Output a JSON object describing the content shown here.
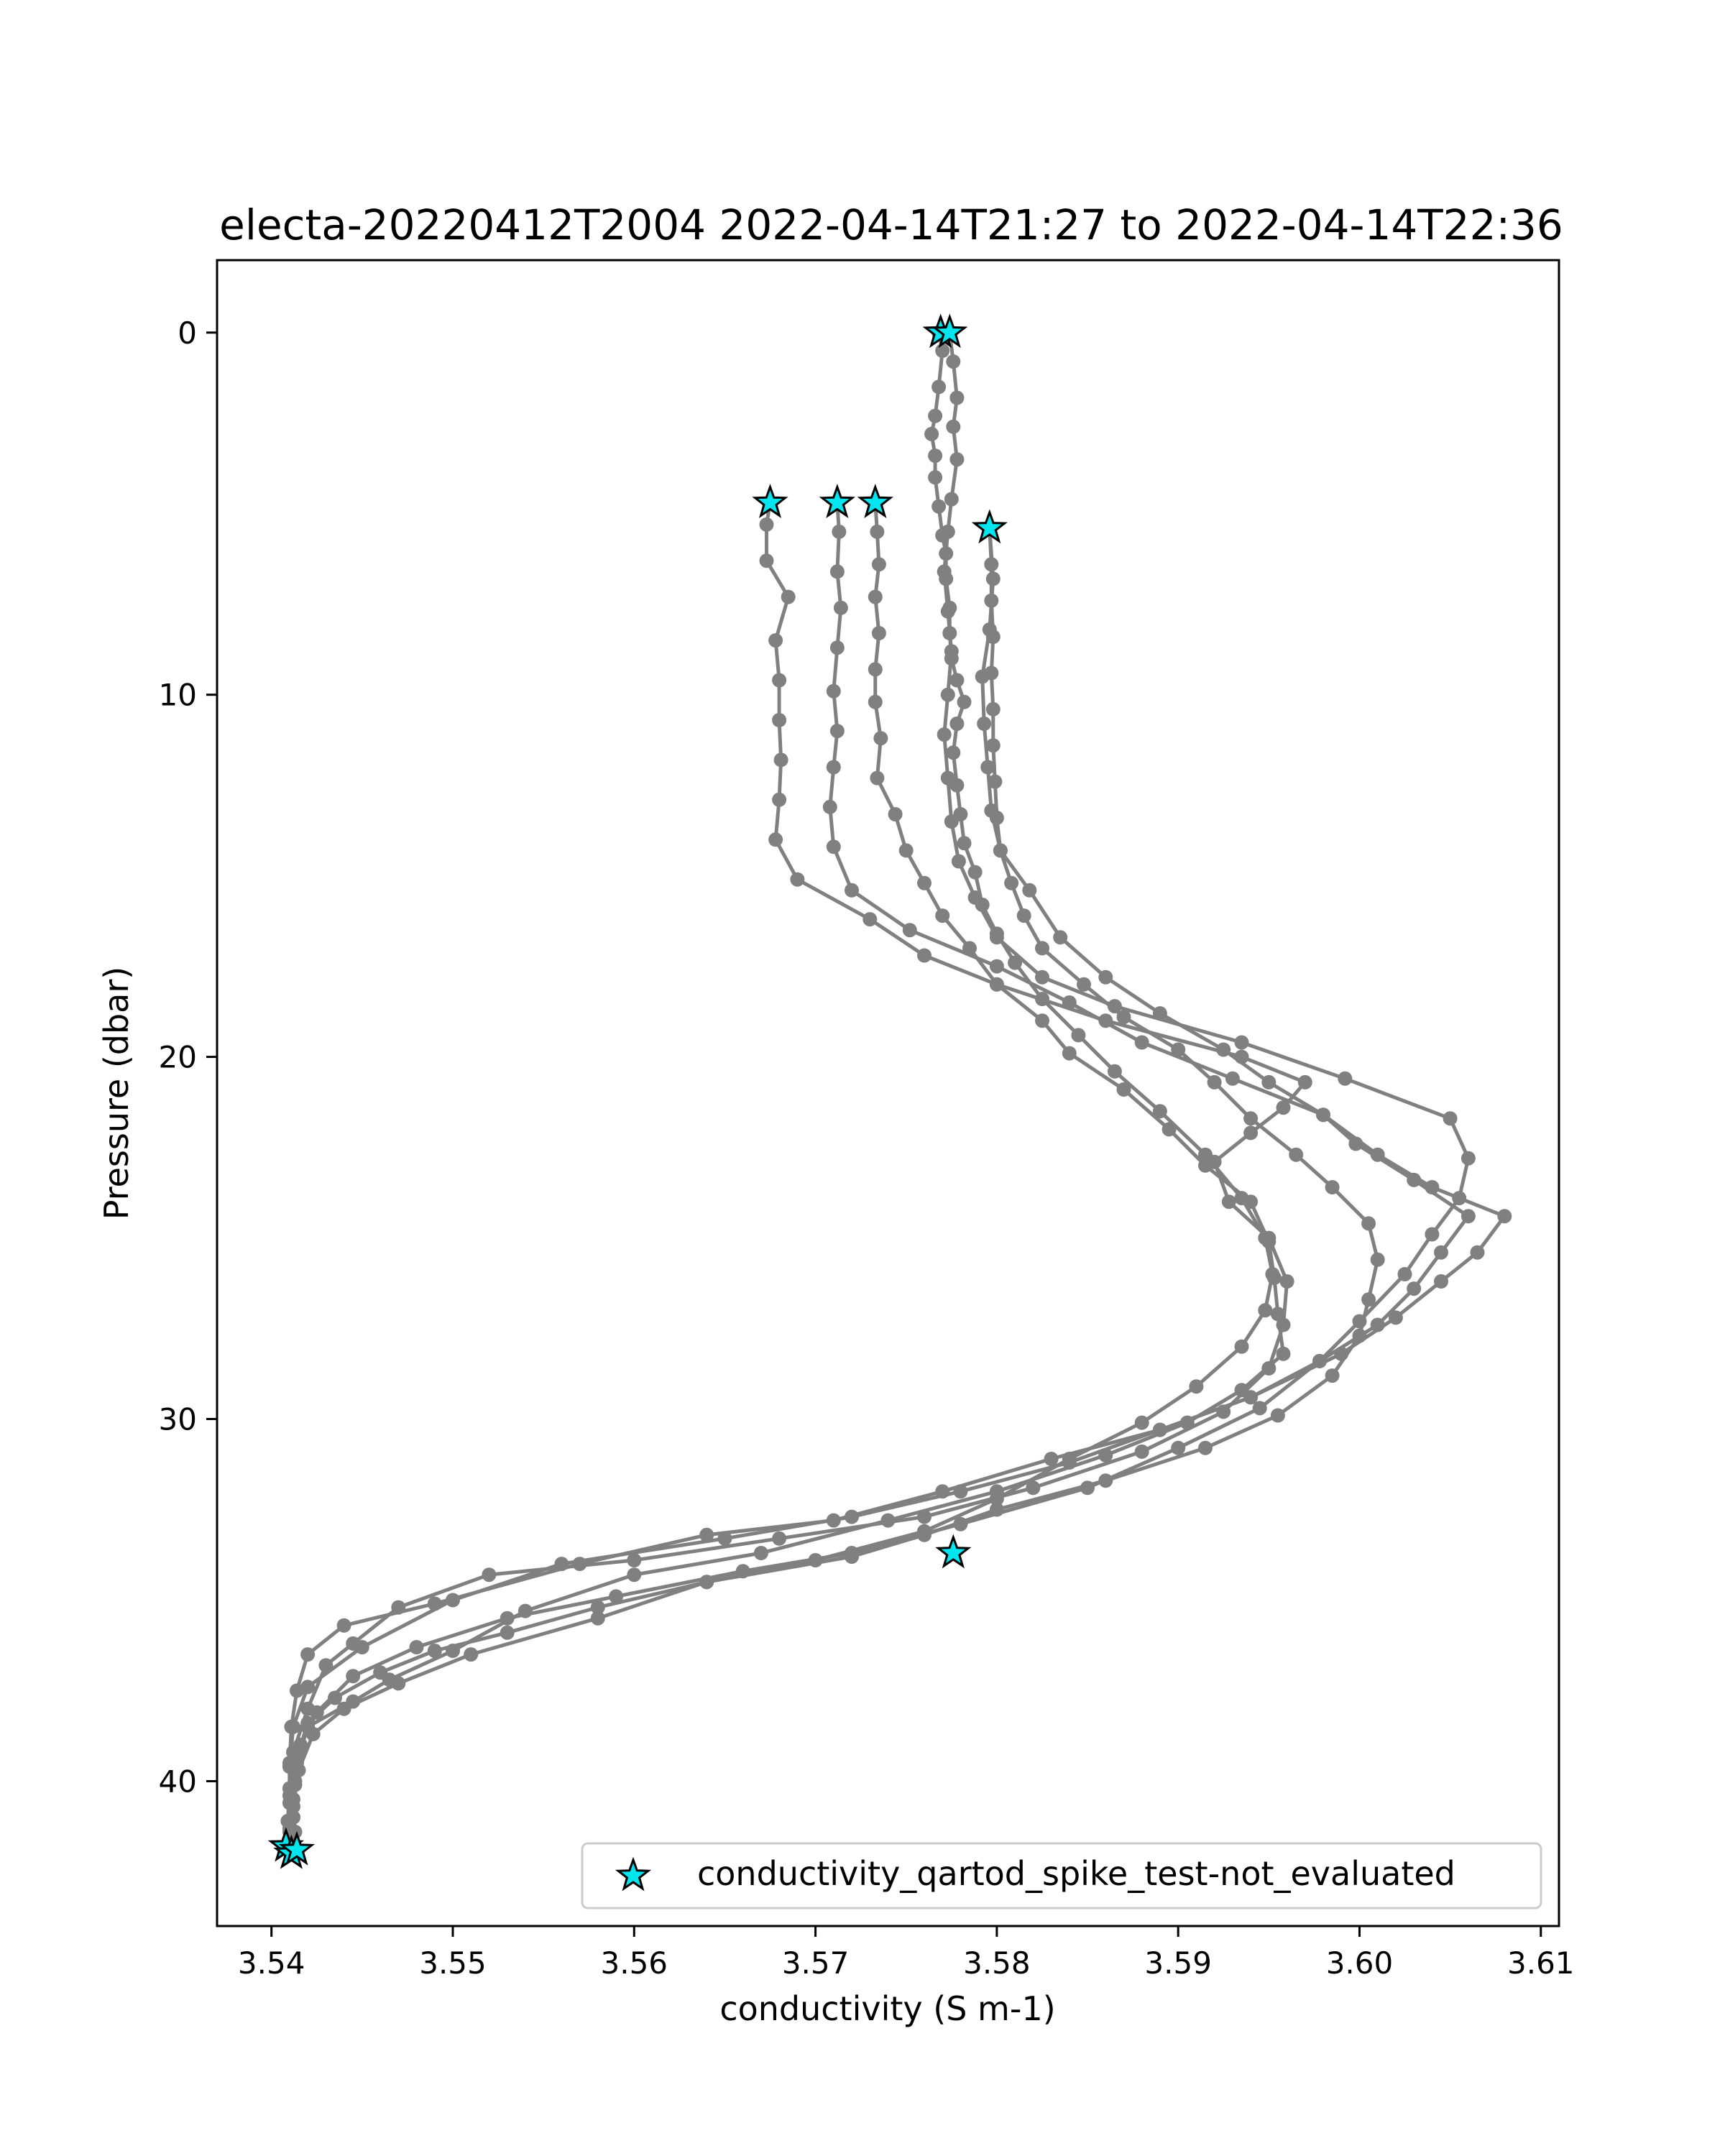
{
  "chart_data": {
    "type": "line",
    "title": "electa-20220412T2004 2022-04-14T21:27 to 2022-04-14T22:36",
    "xlabel": "conductivity (S m-1)",
    "ylabel": "Pressure (dbar)",
    "xlim": [
      3.537,
      3.611
    ],
    "ylim": [
      44,
      -2
    ],
    "y_inverted": true,
    "grid": false,
    "xticks": [
      3.54,
      3.55,
      3.56,
      3.57,
      3.58,
      3.59,
      3.6,
      3.61
    ],
    "xtick_labels": [
      "3.54",
      "3.55",
      "3.56",
      "3.57",
      "3.58",
      "3.59",
      "3.60",
      "3.61"
    ],
    "yticks": [
      0,
      10,
      20,
      30,
      40
    ],
    "ytick_labels": [
      "0",
      "10",
      "20",
      "30",
      "40"
    ],
    "line_color": "#808080",
    "legend": {
      "position": "lower right",
      "entries": [
        {
          "label": "conductivity_qartod_spike_test-not_evaluated",
          "marker": "star",
          "color": "#00e5ee"
        }
      ]
    },
    "series": [
      {
        "points": [
          [
            3.5768,
            0.0
          ],
          [
            3.577,
            0.5
          ],
          [
            3.5768,
            1.5
          ],
          [
            3.5766,
            2.3
          ],
          [
            3.5764,
            2.8
          ],
          [
            3.5766,
            3.4
          ],
          [
            3.5766,
            4.0
          ],
          [
            3.5768,
            4.8
          ],
          [
            3.577,
            5.6
          ],
          [
            3.5772,
            6.1
          ],
          [
            3.5772,
            6.8
          ],
          [
            3.5774,
            7.6
          ],
          [
            3.5774,
            8.3
          ],
          [
            3.5775,
            9.0
          ],
          [
            3.5778,
            9.6
          ],
          [
            3.5782,
            10.2
          ],
          [
            3.5778,
            10.8
          ],
          [
            3.5776,
            11.6
          ],
          [
            3.5778,
            12.5
          ],
          [
            3.578,
            13.3
          ],
          [
            3.5782,
            14.1
          ],
          [
            3.5788,
            14.9
          ],
          [
            3.5792,
            15.8
          ],
          [
            3.58,
            16.6
          ],
          [
            3.581,
            17.4
          ],
          [
            3.5825,
            18.4
          ],
          [
            3.5845,
            19.4
          ],
          [
            3.5865,
            20.4
          ],
          [
            3.589,
            21.5
          ],
          [
            3.5915,
            22.7
          ],
          [
            3.5935,
            23.9
          ],
          [
            3.5948,
            25.0
          ],
          [
            3.5952,
            26.0
          ],
          [
            3.5948,
            27.0
          ],
          [
            3.5935,
            28.0
          ],
          [
            3.591,
            29.1
          ],
          [
            3.588,
            30.1
          ],
          [
            3.584,
            31.1
          ],
          [
            3.58,
            32.2
          ],
          [
            3.576,
            33.1
          ],
          [
            3.57,
            33.9
          ],
          [
            3.564,
            34.5
          ],
          [
            3.558,
            35.2
          ],
          [
            3.553,
            35.9
          ],
          [
            3.549,
            36.4
          ],
          [
            3.546,
            37.0
          ],
          [
            3.5435,
            37.7
          ],
          [
            3.542,
            38.4
          ],
          [
            3.5415,
            39.2
          ],
          [
            3.5413,
            40.1
          ],
          [
            3.5412,
            41.0
          ],
          [
            3.5412,
            41.8
          ]
        ]
      },
      {
        "points": [
          [
            3.5774,
            0.0
          ],
          [
            3.5776,
            0.8
          ],
          [
            3.5778,
            1.8
          ],
          [
            3.5776,
            2.6
          ],
          [
            3.5778,
            3.5
          ],
          [
            3.5775,
            4.6
          ],
          [
            3.5773,
            5.5
          ],
          [
            3.5771,
            6.6
          ],
          [
            3.5773,
            7.7
          ],
          [
            3.5775,
            8.8
          ],
          [
            3.5773,
            10.0
          ],
          [
            3.5771,
            11.1
          ],
          [
            3.5773,
            12.3
          ],
          [
            3.5775,
            13.5
          ],
          [
            3.5779,
            14.6
          ],
          [
            3.5788,
            15.6
          ],
          [
            3.58,
            16.7
          ],
          [
            3.5825,
            17.8
          ],
          [
            3.5865,
            18.6
          ],
          [
            3.5935,
            19.6
          ],
          [
            3.5992,
            20.6
          ],
          [
            3.605,
            21.7
          ],
          [
            3.606,
            22.8
          ],
          [
            3.6055,
            23.9
          ],
          [
            3.604,
            24.9
          ],
          [
            3.6025,
            26.0
          ],
          [
            3.6,
            27.3
          ],
          [
            3.5978,
            28.4
          ],
          [
            3.5945,
            29.7
          ],
          [
            3.59,
            30.8
          ],
          [
            3.585,
            31.9
          ],
          [
            3.578,
            32.9
          ],
          [
            3.572,
            33.7
          ],
          [
            3.566,
            34.2
          ],
          [
            3.559,
            34.9
          ],
          [
            3.553,
            35.5
          ],
          [
            3.548,
            36.3
          ],
          [
            3.5445,
            37.1
          ],
          [
            3.5425,
            38.1
          ],
          [
            3.5416,
            39.0
          ],
          [
            3.5413,
            40.0
          ],
          [
            3.5412,
            41.0
          ],
          [
            3.541,
            41.8
          ]
        ]
      },
      {
        "points": [
          [
            3.5675,
            4.7
          ],
          [
            3.5673,
            5.3
          ],
          [
            3.5673,
            6.3
          ],
          [
            3.5685,
            7.3
          ],
          [
            3.5678,
            8.5
          ],
          [
            3.568,
            9.6
          ],
          [
            3.568,
            10.7
          ],
          [
            3.5681,
            11.8
          ],
          [
            3.568,
            12.9
          ],
          [
            3.5678,
            14.0
          ],
          [
            3.569,
            15.1
          ],
          [
            3.573,
            16.2
          ],
          [
            3.576,
            17.2
          ],
          [
            3.58,
            18.0
          ],
          [
            3.586,
            19.0
          ],
          [
            3.5935,
            20.0
          ],
          [
            3.597,
            20.7
          ],
          [
            3.5958,
            21.4
          ],
          [
            3.594,
            22.1
          ],
          [
            3.592,
            22.9
          ],
          [
            3.5928,
            24.0
          ],
          [
            3.595,
            25.0
          ],
          [
            3.596,
            26.2
          ],
          [
            3.5958,
            27.4
          ],
          [
            3.595,
            28.6
          ],
          [
            3.5925,
            29.8
          ],
          [
            3.588,
            30.9
          ],
          [
            3.582,
            31.9
          ],
          [
            3.576,
            32.7
          ],
          [
            3.568,
            33.3
          ],
          [
            3.56,
            33.9
          ],
          [
            3.552,
            34.3
          ],
          [
            3.547,
            35.2
          ],
          [
            3.5445,
            36.2
          ],
          [
            3.543,
            36.8
          ],
          [
            3.542,
            38.0
          ],
          [
            3.5412,
            39.2
          ],
          [
            3.541,
            40.2
          ],
          [
            3.5409,
            41.1
          ],
          [
            3.5408,
            41.8
          ]
        ]
      },
      {
        "points": [
          [
            3.5712,
            4.7
          ],
          [
            3.5713,
            5.5
          ],
          [
            3.5712,
            6.6
          ],
          [
            3.5714,
            7.6
          ],
          [
            3.5712,
            8.7
          ],
          [
            3.571,
            9.9
          ],
          [
            3.5712,
            11.0
          ],
          [
            3.571,
            12.0
          ],
          [
            3.5708,
            13.1
          ],
          [
            3.571,
            14.2
          ],
          [
            3.572,
            15.4
          ],
          [
            3.5752,
            16.5
          ],
          [
            3.58,
            17.5
          ],
          [
            3.584,
            18.5
          ],
          [
            3.588,
            19.6
          ],
          [
            3.593,
            20.6
          ],
          [
            3.598,
            21.6
          ],
          [
            3.601,
            22.7
          ],
          [
            3.604,
            23.6
          ],
          [
            3.608,
            24.4
          ],
          [
            3.6065,
            25.4
          ],
          [
            3.6045,
            26.2
          ],
          [
            3.602,
            27.2
          ],
          [
            3.599,
            28.2
          ],
          [
            3.594,
            29.4
          ],
          [
            3.589,
            30.3
          ],
          [
            3.583,
            31.1
          ],
          [
            3.577,
            32.0
          ],
          [
            3.571,
            32.8
          ],
          [
            3.564,
            33.2
          ],
          [
            3.557,
            34.0
          ],
          [
            3.549,
            35.1
          ],
          [
            3.544,
            35.7
          ],
          [
            3.542,
            36.5
          ],
          [
            3.5414,
            37.5
          ],
          [
            3.5411,
            38.5
          ],
          [
            3.541,
            39.5
          ],
          [
            3.541,
            40.4
          ],
          [
            3.541,
            41.3
          ],
          [
            3.5411,
            42.0
          ]
        ]
      },
      {
        "points": [
          [
            3.5733,
            4.7
          ],
          [
            3.5734,
            5.5
          ],
          [
            3.5735,
            6.4
          ],
          [
            3.5733,
            7.3
          ],
          [
            3.5735,
            8.3
          ],
          [
            3.5733,
            9.3
          ],
          [
            3.5733,
            10.2
          ],
          [
            3.5736,
            11.2
          ],
          [
            3.5734,
            12.3
          ],
          [
            3.5744,
            13.3
          ],
          [
            3.575,
            14.3
          ],
          [
            3.576,
            15.2
          ],
          [
            3.577,
            16.1
          ],
          [
            3.5785,
            17.0
          ],
          [
            3.58,
            18.0
          ],
          [
            3.5825,
            19.0
          ],
          [
            3.584,
            19.9
          ],
          [
            3.587,
            20.9
          ],
          [
            3.5895,
            22.0
          ],
          [
            3.5915,
            23.0
          ],
          [
            3.594,
            24.0
          ],
          [
            3.595,
            25.1
          ],
          [
            3.5953,
            26.1
          ],
          [
            3.5955,
            27.1
          ],
          [
            3.5958,
            28.2
          ],
          [
            3.5935,
            29.2
          ],
          [
            3.5905,
            30.1
          ],
          [
            3.586,
            31.0
          ],
          [
            3.58,
            32.0
          ],
          [
            3.574,
            32.8
          ],
          [
            3.567,
            33.7
          ],
          [
            3.56,
            34.3
          ],
          [
            3.554,
            35.3
          ],
          [
            3.55,
            36.4
          ],
          [
            3.5465,
            37.2
          ],
          [
            3.5445,
            37.8
          ],
          [
            3.542,
            38.5
          ],
          [
            3.5414,
            39.5
          ],
          [
            3.5412,
            40.5
          ],
          [
            3.5413,
            41.4
          ],
          [
            3.5412,
            42.0
          ]
        ]
      },
      {
        "points": [
          [
            3.5796,
            5.4
          ],
          [
            3.5797,
            6.4
          ],
          [
            3.5797,
            7.4
          ],
          [
            3.5798,
            8.4
          ],
          [
            3.5797,
            9.4
          ],
          [
            3.5798,
            10.4
          ],
          [
            3.5798,
            11.4
          ],
          [
            3.5799,
            12.4
          ],
          [
            3.58,
            13.4
          ],
          [
            3.5802,
            14.3
          ],
          [
            3.5808,
            15.2
          ],
          [
            3.5815,
            16.1
          ],
          [
            3.5825,
            17.0
          ],
          [
            3.5848,
            18.0
          ],
          [
            3.587,
            18.9
          ],
          [
            3.59,
            19.8
          ],
          [
            3.592,
            20.7
          ],
          [
            3.594,
            21.7
          ],
          [
            3.5965,
            22.7
          ],
          [
            3.5985,
            23.6
          ],
          [
            3.6005,
            24.6
          ],
          [
            3.601,
            25.6
          ],
          [
            3.6005,
            26.7
          ],
          [
            3.6,
            27.7
          ],
          [
            3.5985,
            28.8
          ],
          [
            3.5955,
            29.9
          ],
          [
            3.5915,
            30.8
          ],
          [
            3.586,
            31.7
          ],
          [
            3.58,
            32.5
          ],
          [
            3.576,
            33.2
          ],
          [
            3.572,
            33.8
          ],
          [
            3.564,
            34.5
          ],
          [
            3.558,
            35.5
          ],
          [
            3.551,
            36.5
          ],
          [
            3.547,
            37.3
          ],
          [
            3.544,
            38.0
          ],
          [
            3.5423,
            38.7
          ],
          [
            3.5415,
            39.7
          ],
          [
            3.5412,
            40.7
          ],
          [
            3.5411,
            41.5
          ]
        ]
      },
      {
        "points": [
          [
            3.5796,
            5.4
          ],
          [
            3.5798,
            6.8
          ],
          [
            3.5796,
            8.2
          ],
          [
            3.5792,
            9.5
          ],
          [
            3.5793,
            10.8
          ],
          [
            3.5795,
            12.0
          ],
          [
            3.5797,
            13.2
          ],
          [
            3.5802,
            14.3
          ],
          [
            3.5818,
            15.4
          ],
          [
            3.5835,
            16.7
          ],
          [
            3.586,
            17.8
          ],
          [
            3.589,
            18.8
          ],
          [
            3.5925,
            19.8
          ],
          [
            3.595,
            20.7
          ],
          [
            3.598,
            21.6
          ],
          [
            3.5998,
            22.4
          ],
          [
            3.603,
            23.4
          ],
          [
            3.606,
            24.4
          ],
          [
            3.6045,
            25.4
          ],
          [
            3.603,
            26.4
          ],
          [
            3.601,
            27.4
          ],
          [
            3.5978,
            28.4
          ],
          [
            3.594,
            29.4
          ],
          [
            3.589,
            30.3
          ],
          [
            3.584,
            31.2
          ],
          [
            3.578,
            32.0
          ],
          [
            3.572,
            32.7
          ],
          [
            3.565,
            33.3
          ],
          [
            3.556,
            34.0
          ],
          [
            3.55,
            35.0
          ],
          [
            3.545,
            36.3
          ],
          [
            3.542,
            37.4
          ],
          [
            3.5412,
            38.5
          ],
          [
            3.541,
            39.6
          ],
          [
            3.541,
            40.6
          ],
          [
            3.541,
            41.4
          ]
        ]
      }
    ],
    "flagged_points": [
      [
        3.5769,
        0.0
      ],
      [
        3.5774,
        0.0
      ],
      [
        3.5675,
        4.7
      ],
      [
        3.5712,
        4.7
      ],
      [
        3.5733,
        4.7
      ],
      [
        3.5796,
        5.4
      ],
      [
        3.5776,
        33.7
      ],
      [
        3.5408,
        41.8
      ],
      [
        3.5411,
        42.0
      ],
      [
        3.5414,
        41.9
      ]
    ]
  }
}
